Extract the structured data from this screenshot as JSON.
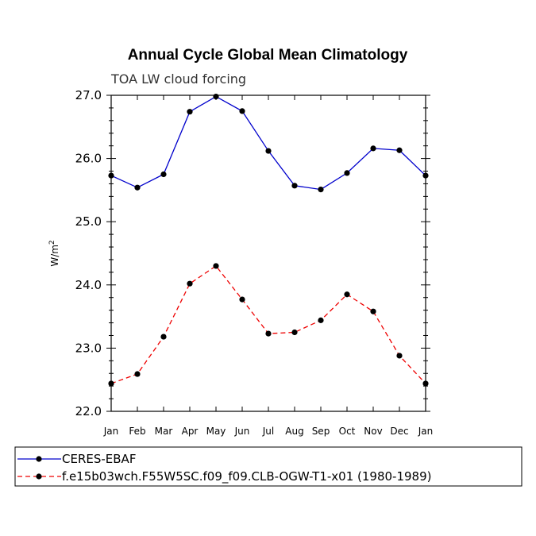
{
  "chart_data": {
    "type": "line",
    "title": "Annual Cycle Global Mean Climatology",
    "subtitle": "TOA LW cloud forcing",
    "xlabel": "",
    "ylabel": "W/m",
    "ylabel_superscript": "2",
    "categories": [
      "Jan",
      "Feb",
      "Mar",
      "Apr",
      "May",
      "Jun",
      "Jul",
      "Aug",
      "Sep",
      "Oct",
      "Nov",
      "Dec",
      "Jan"
    ],
    "ylim": [
      22.0,
      27.0
    ],
    "yticks": [
      "22.0",
      "23.0",
      "24.0",
      "25.0",
      "26.0",
      "27.0"
    ],
    "series": [
      {
        "name": "CERES-EBAF",
        "color": "#0000cc",
        "dash": "solid",
        "values": [
          25.73,
          25.54,
          25.75,
          26.74,
          26.98,
          26.75,
          26.12,
          25.57,
          25.51,
          25.77,
          26.16,
          26.13,
          25.73
        ]
      },
      {
        "name": "f.e15b03wch.F55W5SC.f09_f09.CLB-OGW-T1-x01 (1980-1989)",
        "color": "#ee0000",
        "dash": "dashed",
        "values": [
          22.44,
          22.59,
          23.18,
          24.02,
          24.3,
          23.77,
          23.23,
          23.25,
          23.44,
          23.85,
          23.58,
          22.88,
          22.44
        ]
      }
    ]
  }
}
